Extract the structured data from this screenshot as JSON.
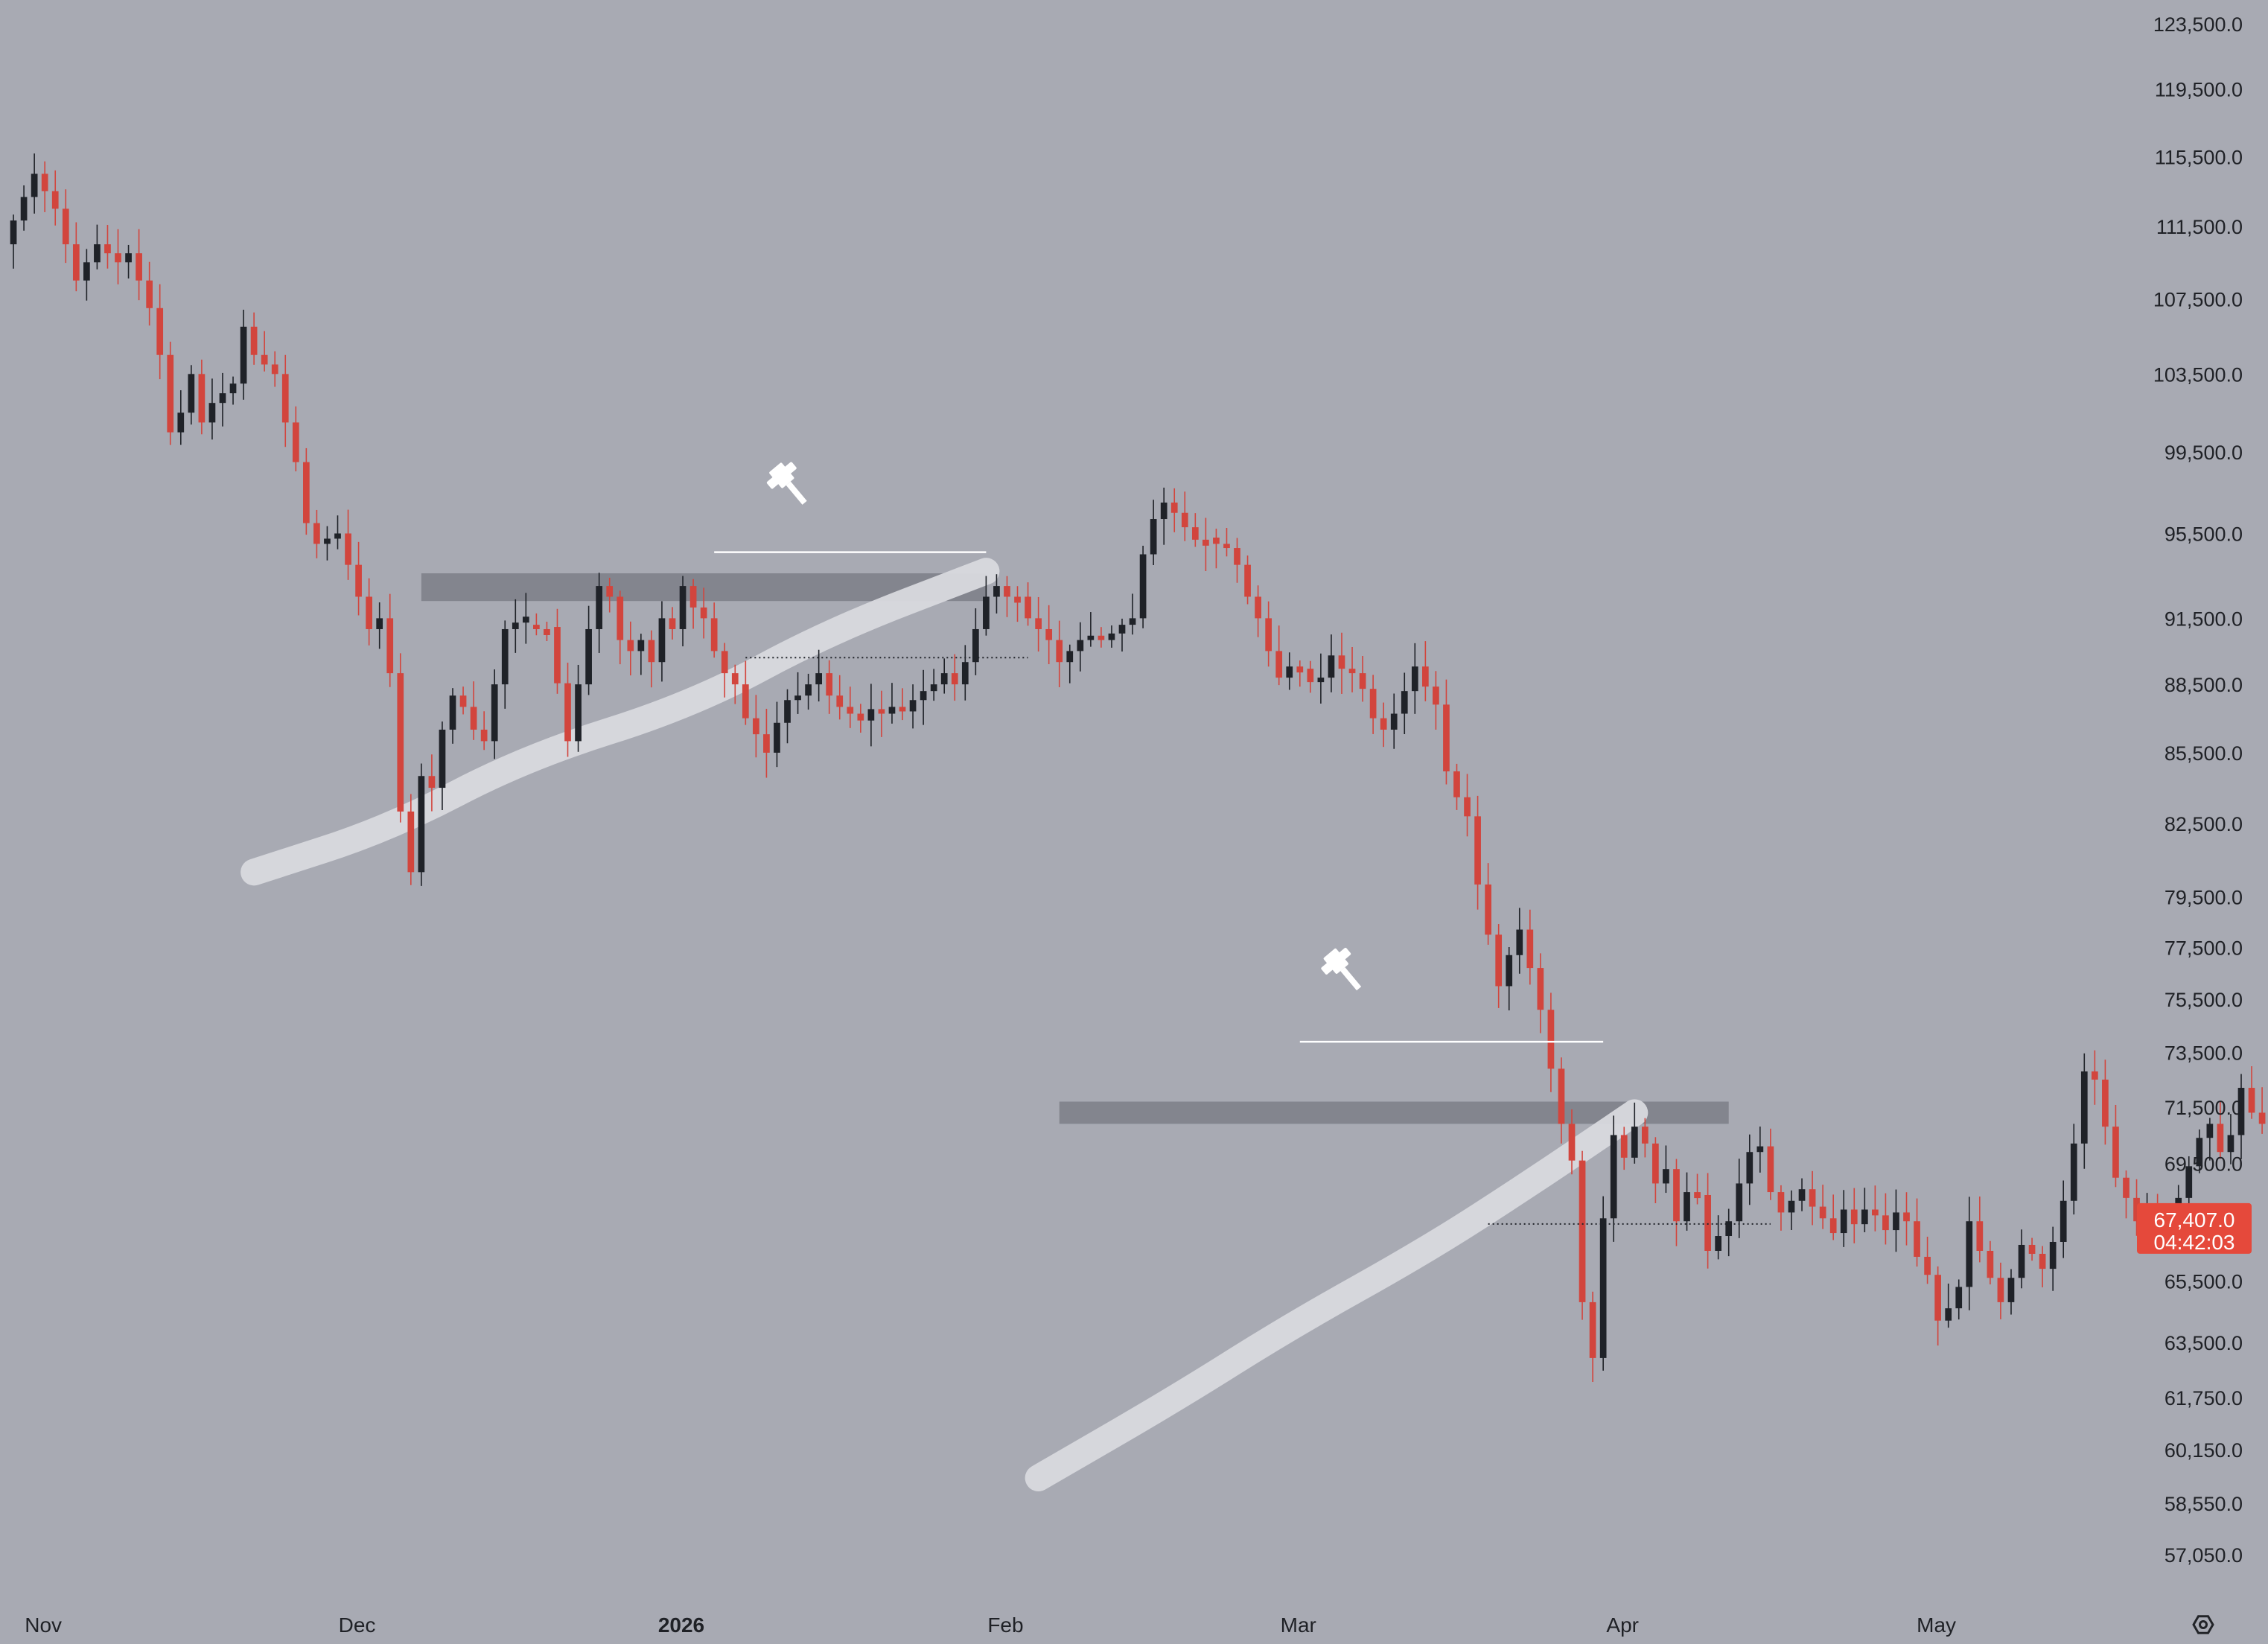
{
  "chart_data": {
    "type": "candlestick",
    "title": "",
    "xlabel": "",
    "ylabel": "",
    "x_range": [
      "2025-10-29",
      "2026-05-31"
    ],
    "y_range_approx": [
      55800,
      124500
    ],
    "y_scale": "log",
    "grid": false,
    "legend": "none",
    "colors": {
      "background": "#a8aab3",
      "up": "#1f2228",
      "down": "#d2453d",
      "badge": "#e5493b"
    },
    "price_ticks": [
      "123,500.0",
      "119,500.0",
      "115,500.0",
      "111,500.0",
      "107,500.0",
      "103,500.0",
      "99,500.0",
      "95,500.0",
      "91,500.0",
      "88,500.0",
      "85,500.0",
      "82,500.0",
      "79,500.0",
      "77,500.0",
      "75,500.0",
      "73,500.0",
      "71,500.0",
      "69,500.0",
      "67,407.0",
      "65,500.0",
      "63,500.0",
      "61,750.0",
      "60,150.0",
      "58,550.0",
      "57,050.0"
    ],
    "price_tick_values": [
      123500,
      119500,
      115500,
      111500,
      107500,
      103500,
      99500,
      95500,
      91500,
      88500,
      85500,
      82500,
      79500,
      77500,
      75500,
      73500,
      71500,
      69500,
      67407,
      65500,
      63500,
      61750,
      60150,
      58550,
      57050
    ],
    "date_ticks": [
      {
        "label": "Nov",
        "date": "2025-11-01",
        "bold": false
      },
      {
        "label": "Dec",
        "date": "2025-12-01",
        "bold": false
      },
      {
        "label": "2026",
        "date": "2026-01-01",
        "bold": true
      },
      {
        "label": "Feb",
        "date": "2026-02-01",
        "bold": false
      },
      {
        "label": "Mar",
        "date": "2026-03-01",
        "bold": false
      },
      {
        "label": "Apr",
        "date": "2026-04-01",
        "bold": false
      },
      {
        "label": "May",
        "date": "2026-05-01",
        "bold": false
      }
    ],
    "current_price": {
      "price_label": "67,407.0",
      "countdown": "04:42:03",
      "value": 67407
    },
    "series_start_date": "2025-10-29",
    "close_path": [
      [
        0,
        110500
      ],
      [
        3,
        114500
      ],
      [
        5,
        112500
      ],
      [
        7,
        108500
      ],
      [
        9,
        110500
      ],
      [
        11,
        109500
      ],
      [
        12,
        110000
      ],
      [
        14,
        107000
      ],
      [
        15,
        104500
      ],
      [
        16,
        100500
      ],
      [
        17,
        101500
      ],
      [
        18,
        103500
      ],
      [
        19,
        101000
      ],
      [
        20,
        102000
      ],
      [
        22,
        103000
      ],
      [
        23,
        106000
      ],
      [
        24,
        104500
      ],
      [
        26,
        103500
      ],
      [
        27,
        101000
      ],
      [
        28,
        99000
      ],
      [
        29,
        96000
      ],
      [
        30,
        95000
      ],
      [
        32,
        95500
      ],
      [
        34,
        92500
      ],
      [
        35,
        91000
      ],
      [
        36,
        91500
      ],
      [
        37,
        89000
      ],
      [
        38,
        83000
      ],
      [
        39,
        80500
      ],
      [
        40,
        84500
      ],
      [
        41,
        84000
      ],
      [
        42,
        86500
      ],
      [
        43,
        88000
      ],
      [
        44,
        87500
      ],
      [
        45,
        86500
      ],
      [
        46,
        86000
      ],
      [
        47,
        88500
      ],
      [
        48,
        91000
      ],
      [
        49,
        91300
      ],
      [
        50,
        91200
      ],
      [
        51,
        91000
      ],
      [
        52,
        91100
      ],
      [
        54,
        86000
      ],
      [
        55,
        88500
      ],
      [
        56,
        91000
      ],
      [
        57,
        93000
      ],
      [
        58,
        92500
      ],
      [
        59,
        90500
      ],
      [
        60,
        90000
      ],
      [
        61,
        90500
      ],
      [
        62,
        89500
      ],
      [
        63,
        91500
      ],
      [
        64,
        91000
      ],
      [
        65,
        93000
      ],
      [
        66,
        92000
      ],
      [
        67,
        91500
      ],
      [
        68,
        90000
      ],
      [
        69,
        89000
      ],
      [
        70,
        88500
      ],
      [
        71,
        87000
      ],
      [
        72,
        86300
      ],
      [
        73,
        85500
      ],
      [
        74,
        86800
      ],
      [
        75,
        87800
      ],
      [
        76,
        88000
      ],
      [
        77,
        88500
      ],
      [
        78,
        89000
      ],
      [
        79,
        88000
      ],
      [
        80,
        87500
      ],
      [
        81,
        87200
      ],
      [
        82,
        86900
      ],
      [
        83,
        87400
      ],
      [
        84,
        87200
      ],
      [
        85,
        87500
      ],
      [
        86,
        87300
      ],
      [
        87,
        87800
      ],
      [
        88,
        88200
      ],
      [
        89,
        88500
      ],
      [
        90,
        89000
      ],
      [
        91,
        88500
      ],
      [
        92,
        89500
      ],
      [
        93,
        91000
      ],
      [
        94,
        92500
      ],
      [
        95,
        93000
      ],
      [
        96,
        92500
      ],
      [
        97,
        92500
      ],
      [
        98,
        91500
      ],
      [
        99,
        91000
      ],
      [
        100,
        90500
      ],
      [
        101,
        89500
      ],
      [
        102,
        90000
      ],
      [
        103,
        90500
      ],
      [
        104,
        90700
      ],
      [
        105,
        90500
      ],
      [
        106,
        90800
      ],
      [
        107,
        91200
      ],
      [
        108,
        91500
      ],
      [
        109,
        94500
      ],
      [
        110,
        96200
      ],
      [
        111,
        97000
      ],
      [
        112,
        96500
      ],
      [
        113,
        95800
      ],
      [
        114,
        95200
      ],
      [
        115,
        95300
      ],
      [
        116,
        95000
      ],
      [
        117,
        94800
      ],
      [
        118,
        94000
      ],
      [
        119,
        92500
      ],
      [
        120,
        91500
      ],
      [
        121,
        90000
      ],
      [
        122,
        88800
      ],
      [
        123,
        89300
      ],
      [
        124,
        89200
      ],
      [
        125,
        88600
      ],
      [
        126,
        88800
      ],
      [
        127,
        89800
      ],
      [
        128,
        89200
      ],
      [
        129,
        89000
      ],
      [
        130,
        88300
      ],
      [
        131,
        87000
      ],
      [
        132,
        86500
      ],
      [
        133,
        87200
      ],
      [
        134,
        88200
      ],
      [
        135,
        89300
      ],
      [
        136,
        88400
      ],
      [
        137,
        87600
      ],
      [
        138,
        84700
      ],
      [
        139,
        83600
      ],
      [
        140,
        82800
      ],
      [
        141,
        80000
      ],
      [
        142,
        78000
      ],
      [
        143,
        76000
      ],
      [
        144,
        77200
      ],
      [
        145,
        78200
      ],
      [
        146,
        76700
      ],
      [
        147,
        75100
      ],
      [
        148,
        72900
      ],
      [
        149,
        70900
      ],
      [
        150,
        69600
      ],
      [
        151,
        64800
      ],
      [
        152,
        63000
      ],
      [
        153,
        67600
      ],
      [
        154,
        70500
      ],
      [
        155,
        69700
      ],
      [
        156,
        70800
      ],
      [
        157,
        70200
      ],
      [
        158,
        68800
      ],
      [
        159,
        69300
      ],
      [
        160,
        67500
      ],
      [
        161,
        68500
      ],
      [
        162,
        68400
      ],
      [
        163,
        66500
      ],
      [
        164,
        67000
      ],
      [
        165,
        67500
      ],
      [
        166,
        68800
      ],
      [
        167,
        69900
      ],
      [
        168,
        70100
      ],
      [
        169,
        68500
      ],
      [
        170,
        67800
      ],
      [
        171,
        68200
      ],
      [
        172,
        68600
      ],
      [
        173,
        68000
      ],
      [
        174,
        67600
      ],
      [
        175,
        67100
      ],
      [
        176,
        67900
      ],
      [
        177,
        67400
      ],
      [
        178,
        67900
      ],
      [
        179,
        67700
      ],
      [
        180,
        67200
      ],
      [
        181,
        67800
      ],
      [
        182,
        67500
      ],
      [
        183,
        66300
      ],
      [
        184,
        65700
      ],
      [
        185,
        64200
      ],
      [
        186,
        64600
      ],
      [
        187,
        65300
      ],
      [
        188,
        67500
      ],
      [
        189,
        66500
      ],
      [
        190,
        65600
      ],
      [
        191,
        64800
      ],
      [
        192,
        65600
      ],
      [
        193,
        66700
      ],
      [
        194,
        66400
      ],
      [
        195,
        65900
      ],
      [
        196,
        66800
      ],
      [
        197,
        68200
      ],
      [
        198,
        70200
      ],
      [
        199,
        72800
      ],
      [
        200,
        72500
      ],
      [
        201,
        70800
      ],
      [
        202,
        69000
      ],
      [
        203,
        68300
      ],
      [
        204,
        67500
      ],
      [
        205,
        67900
      ],
      [
        206,
        66800
      ],
      [
        207,
        67700
      ],
      [
        208,
        68300
      ],
      [
        209,
        69400
      ],
      [
        210,
        70400
      ],
      [
        211,
        70900
      ],
      [
        212,
        69900
      ],
      [
        213,
        70500
      ],
      [
        214,
        72200
      ],
      [
        215,
        71300
      ],
      [
        216,
        70900
      ],
      [
        217,
        71500
      ],
      [
        218,
        72800
      ],
      [
        219,
        74300
      ],
      [
        220,
        73700
      ],
      [
        221,
        73000
      ],
      [
        222,
        71700
      ],
      [
        223,
        70300
      ],
      [
        224,
        70700
      ],
      [
        225,
        70100
      ],
      [
        226,
        69800
      ],
      [
        227,
        68600
      ],
      [
        228,
        68300
      ],
      [
        229,
        69700
      ],
      [
        230,
        71300
      ],
      [
        231,
        71600
      ],
      [
        232,
        71100
      ],
      [
        233,
        70900
      ],
      [
        234,
        70300
      ],
      [
        235,
        69500
      ],
      [
        236,
        68500
      ],
      [
        237,
        67100
      ],
      [
        238,
        66200
      ],
      [
        239,
        66600
      ],
      [
        240,
        66000
      ],
      [
        241,
        66100
      ],
      [
        242,
        65700
      ],
      [
        243,
        66800
      ],
      [
        244,
        67407
      ]
    ],
    "annotations": {
      "resistance_zones": [
        {
          "from_date": "2025-12-08",
          "to_date": "2026-01-31",
          "low": 92300,
          "high": 93600
        },
        {
          "from_date": "2026-02-07",
          "to_date": "2026-04-12",
          "low": 70900,
          "high": 71700
        }
      ],
      "top_lines": [
        {
          "from_date": "2026-01-05",
          "to_date": "2026-01-31",
          "price": 94600
        },
        {
          "from_date": "2026-03-02",
          "to_date": "2026-03-31",
          "price": 73900
        }
      ],
      "dotted_levels": [
        {
          "from_date": "2026-01-08",
          "to_date": "2026-02-04",
          "price": 89700
        },
        {
          "from_date": "2026-03-20",
          "to_date": "2026-04-16",
          "price": 67407
        }
      ],
      "wedge_lines": [
        [
          [
            "2025-11-22",
            80500
          ],
          [
            "2025-12-05",
            82300
          ],
          [
            "2025-12-18",
            85300
          ],
          [
            "2026-01-03",
            87600
          ],
          [
            "2026-01-16",
            90900
          ],
          [
            "2026-01-31",
            93700
          ]
        ],
        [
          [
            "2026-02-05",
            59300
          ],
          [
            "2026-02-18",
            61700
          ],
          [
            "2026-03-01",
            64000
          ],
          [
            "2026-03-14",
            66500
          ],
          [
            "2026-03-24",
            68800
          ],
          [
            "2026-04-03",
            71300
          ]
        ]
      ],
      "gavel_icons": [
        {
          "date": "2026-01-12",
          "price": 98000
        },
        {
          "date": "2026-03-06",
          "price": 76700
        }
      ]
    }
  },
  "settings_icon": "gear-icon"
}
